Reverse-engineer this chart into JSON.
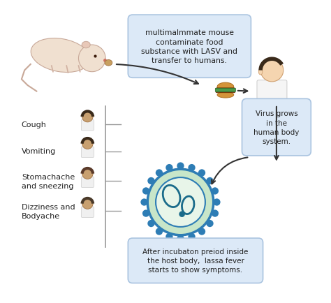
{
  "background_color": "#ffffff",
  "box1_text": "multimalmmate mouse\ncontaminate food\nsubstance with LASV and\ntransfer to humans.",
  "box2_text": "Virus grows\nin the\nhuman body\nsystem.",
  "box3_text": "After incubaton preiod inside\nthe host body,  lassa fever\nstarts to show symptoms.",
  "symptoms": [
    "Cough",
    "Vomiting",
    "Stomachache\nand sneezing",
    "Dizziness and\nBodyache"
  ],
  "box_facecolor": "#dce9f7",
  "box_edgecolor": "#aac4e0",
  "virus_outer_color": "#2e7db5",
  "virus_inner_color": "#c8e6c9",
  "virus_center_color": "#ffffff",
  "blob_color": "#1a6b8a",
  "spike_color": "#2e7db5",
  "line_color": "#999999",
  "arrow_color": "#333333",
  "text_color": "#222222",
  "symptom_text_color": "#222222"
}
